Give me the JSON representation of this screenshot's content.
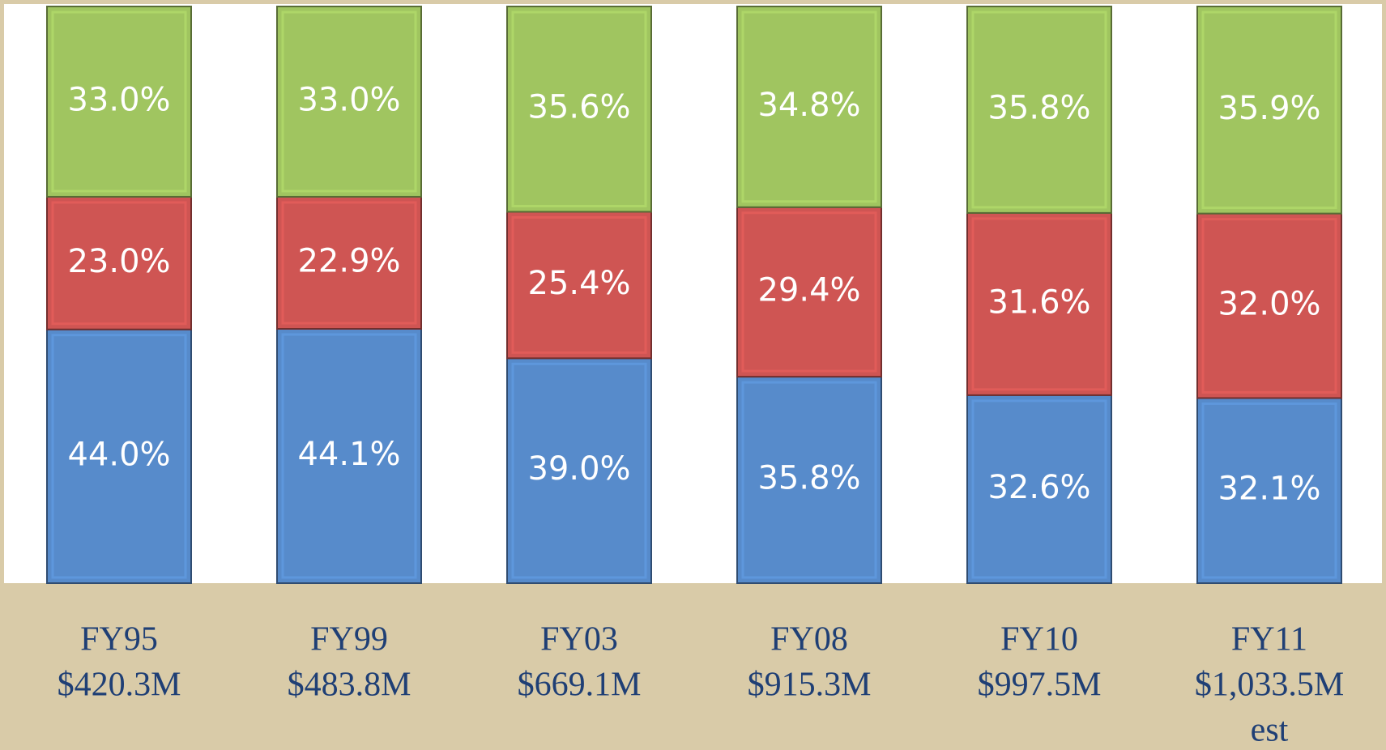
{
  "chart_data": {
    "type": "stacked_bar",
    "categories": [
      [
        "FY95",
        "$420.3M"
      ],
      [
        "FY99",
        "$483.8M"
      ],
      [
        "FY03",
        "$669.1M"
      ],
      [
        "FY08",
        "$915.3M"
      ],
      [
        "FY10",
        "$997.5M"
      ],
      [
        "FY11",
        "$1,033.5M",
        "est"
      ]
    ],
    "series": [
      {
        "color": "#578bcb",
        "values": [
          44.0,
          44.1,
          39.0,
          35.8,
          32.6,
          32.1
        ],
        "value_labels": [
          "44.0%",
          "44.1%",
          "39.0%",
          "35.8%",
          "32.6%",
          "32.1%"
        ]
      },
      {
        "color": "#cf5553",
        "values": [
          23.0,
          22.9,
          25.4,
          29.4,
          31.6,
          32.0
        ],
        "value_labels": [
          "23.0%",
          "22.9%",
          "25.4%",
          "29.4%",
          "31.6%",
          "32.0%"
        ]
      },
      {
        "color": "#a0c560",
        "values": [
          33.0,
          33.0,
          35.6,
          34.8,
          35.8,
          35.9
        ],
        "value_labels": [
          "33.0%",
          "33.0%",
          "35.6%",
          "34.8%",
          "35.8%",
          "35.9%"
        ]
      }
    ],
    "ylim": [
      0,
      100
    ]
  }
}
